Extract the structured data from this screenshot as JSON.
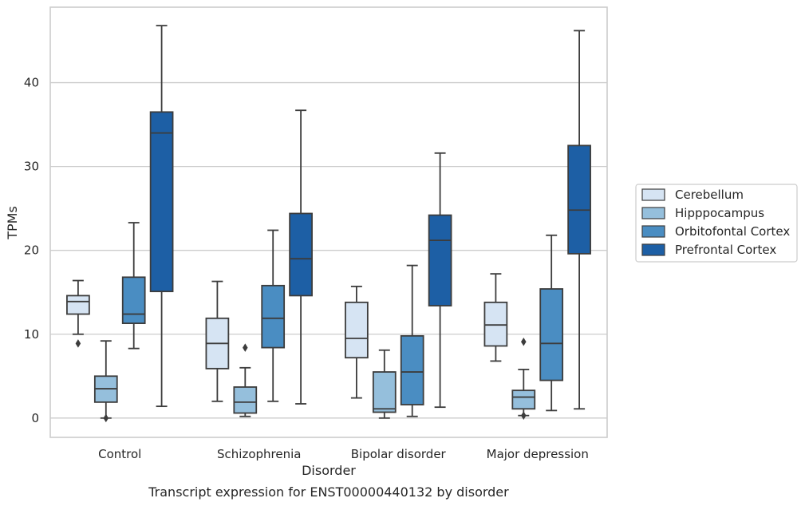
{
  "chart_data": {
    "type": "box",
    "xlabel": "Disorder",
    "ylabel": "TPMs",
    "caption": "Transcript expression for ENST00000440132 by disorder",
    "categories": [
      "Control",
      "Schizophrenia",
      "Bipolar disorder",
      "Major depression"
    ],
    "yticks": [
      0,
      10,
      20,
      30,
      40
    ],
    "ylim": [
      -2.3,
      49
    ],
    "grid": "horizontal",
    "legend_position": "right",
    "series": [
      {
        "name": "Cerebellum",
        "color": "#d6e4f3",
        "boxes": [
          {
            "min": 10.0,
            "q1": 12.4,
            "median": 13.9,
            "q3": 14.6,
            "max": 16.4,
            "outliers": [
              8.9
            ]
          },
          {
            "min": 2.0,
            "q1": 5.9,
            "median": 8.9,
            "q3": 11.9,
            "max": 16.3,
            "outliers": []
          },
          {
            "min": 2.4,
            "q1": 7.2,
            "median": 9.5,
            "q3": 13.8,
            "max": 15.7,
            "outliers": []
          },
          {
            "min": 6.8,
            "q1": 8.6,
            "median": 11.1,
            "q3": 13.8,
            "max": 17.2,
            "outliers": []
          }
        ]
      },
      {
        "name": "Hipppocampus",
        "color": "#95bfdc",
        "boxes": [
          {
            "min": 0.0,
            "q1": 1.9,
            "median": 3.5,
            "q3": 5.0,
            "max": 9.2,
            "outliers": [
              0.0
            ]
          },
          {
            "min": 0.2,
            "q1": 0.6,
            "median": 1.9,
            "q3": 3.7,
            "max": 6.0,
            "outliers": [
              8.4
            ]
          },
          {
            "min": 0.0,
            "q1": 0.7,
            "median": 1.1,
            "q3": 5.5,
            "max": 8.1,
            "outliers": []
          },
          {
            "min": 0.3,
            "q1": 1.1,
            "median": 2.5,
            "q3": 3.3,
            "max": 5.8,
            "outliers": [
              9.1,
              0.3
            ]
          }
        ]
      },
      {
        "name": "Orbitofontal Cortex",
        "color": "#4a8dc2",
        "boxes": [
          {
            "min": 8.3,
            "q1": 11.3,
            "median": 12.4,
            "q3": 16.8,
            "max": 23.3,
            "outliers": []
          },
          {
            "min": 2.0,
            "q1": 8.4,
            "median": 11.9,
            "q3": 15.8,
            "max": 22.4,
            "outliers": []
          },
          {
            "min": 0.2,
            "q1": 1.6,
            "median": 5.5,
            "q3": 9.8,
            "max": 18.2,
            "outliers": []
          },
          {
            "min": 0.9,
            "q1": 4.5,
            "median": 8.9,
            "q3": 15.4,
            "max": 21.8,
            "outliers": []
          }
        ]
      },
      {
        "name": "Prefrontal Cortex",
        "color": "#1d5fa5",
        "boxes": [
          {
            "min": 1.4,
            "q1": 15.1,
            "median": 34.0,
            "q3": 36.5,
            "max": 46.8,
            "outliers": []
          },
          {
            "min": 1.7,
            "q1": 14.6,
            "median": 19.0,
            "q3": 24.4,
            "max": 36.7,
            "outliers": []
          },
          {
            "min": 1.3,
            "q1": 13.4,
            "median": 21.2,
            "q3": 24.2,
            "max": 31.6,
            "outliers": []
          },
          {
            "min": 1.1,
            "q1": 19.6,
            "median": 24.8,
            "q3": 32.5,
            "max": 46.2,
            "outliers": []
          }
        ]
      }
    ]
  }
}
